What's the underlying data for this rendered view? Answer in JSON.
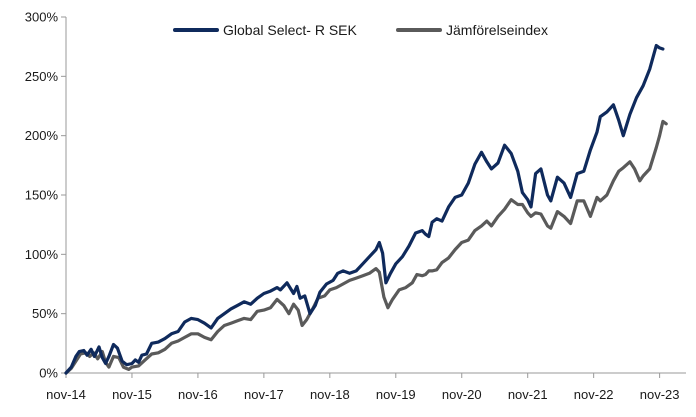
{
  "chart_data": {
    "type": "line",
    "title": "",
    "xlabel": "",
    "ylabel": "",
    "ylim": [
      0,
      300
    ],
    "yticks": [
      0,
      50,
      100,
      150,
      200,
      250,
      300
    ],
    "ytick_labels": [
      "0%",
      "50%",
      "100%",
      "150%",
      "200%",
      "250%",
      "300%"
    ],
    "xlim": [
      0,
      9.4
    ],
    "xtick_positions": [
      0,
      1,
      2,
      3,
      4,
      5,
      6,
      7,
      8,
      9
    ],
    "xtick_labels": [
      "nov-14",
      "nov-15",
      "nov-16",
      "nov-17",
      "nov-18",
      "nov-19",
      "nov-20",
      "nov-21",
      "nov-22",
      "nov-23"
    ],
    "grid": false,
    "legend_position": "top-center",
    "series": [
      {
        "name": "Global Select- R SEK",
        "color": "#0f2a5c",
        "points": [
          [
            0,
            0
          ],
          [
            0.08,
            5
          ],
          [
            0.15,
            14
          ],
          [
            0.2,
            18
          ],
          [
            0.27,
            19
          ],
          [
            0.32,
            15
          ],
          [
            0.38,
            20
          ],
          [
            0.43,
            14
          ],
          [
            0.5,
            22
          ],
          [
            0.55,
            13
          ],
          [
            0.6,
            8
          ],
          [
            0.65,
            14
          ],
          [
            0.72,
            24
          ],
          [
            0.78,
            21
          ],
          [
            0.85,
            10
          ],
          [
            0.92,
            7
          ],
          [
            1.0,
            8
          ],
          [
            1.05,
            11
          ],
          [
            1.1,
            9
          ],
          [
            1.15,
            15
          ],
          [
            1.22,
            16
          ],
          [
            1.3,
            25
          ],
          [
            1.4,
            26
          ],
          [
            1.5,
            29
          ],
          [
            1.6,
            33
          ],
          [
            1.7,
            35
          ],
          [
            1.8,
            43
          ],
          [
            1.9,
            46
          ],
          [
            2.0,
            45
          ],
          [
            2.1,
            42
          ],
          [
            2.2,
            38
          ],
          [
            2.3,
            46
          ],
          [
            2.4,
            50
          ],
          [
            2.5,
            54
          ],
          [
            2.6,
            57
          ],
          [
            2.7,
            60
          ],
          [
            2.8,
            58
          ],
          [
            2.9,
            63
          ],
          [
            3.0,
            67
          ],
          [
            3.1,
            69
          ],
          [
            3.2,
            72
          ],
          [
            3.25,
            70
          ],
          [
            3.35,
            76
          ],
          [
            3.45,
            67
          ],
          [
            3.5,
            73
          ],
          [
            3.55,
            63
          ],
          [
            3.62,
            65
          ],
          [
            3.7,
            50
          ],
          [
            3.78,
            57
          ],
          [
            3.85,
            68
          ],
          [
            3.95,
            75
          ],
          [
            4.05,
            78
          ],
          [
            4.12,
            84
          ],
          [
            4.2,
            86
          ],
          [
            4.3,
            84
          ],
          [
            4.4,
            86
          ],
          [
            4.5,
            92
          ],
          [
            4.6,
            98
          ],
          [
            4.7,
            104
          ],
          [
            4.75,
            110
          ],
          [
            4.8,
            101
          ],
          [
            4.85,
            76
          ],
          [
            4.92,
            84
          ],
          [
            5.0,
            92
          ],
          [
            5.1,
            98
          ],
          [
            5.2,
            107
          ],
          [
            5.3,
            118
          ],
          [
            5.4,
            120
          ],
          [
            5.45,
            117
          ],
          [
            5.5,
            115
          ],
          [
            5.55,
            127
          ],
          [
            5.62,
            130
          ],
          [
            5.7,
            128
          ],
          [
            5.8,
            140
          ],
          [
            5.9,
            148
          ],
          [
            6.0,
            150
          ],
          [
            6.1,
            160
          ],
          [
            6.2,
            176
          ],
          [
            6.3,
            186
          ],
          [
            6.38,
            178
          ],
          [
            6.45,
            172
          ],
          [
            6.55,
            177
          ],
          [
            6.65,
            192
          ],
          [
            6.75,
            185
          ],
          [
            6.85,
            170
          ],
          [
            6.92,
            152
          ],
          [
            7.0,
            146
          ],
          [
            7.05,
            140
          ],
          [
            7.12,
            168
          ],
          [
            7.2,
            172
          ],
          [
            7.3,
            150
          ],
          [
            7.35,
            145
          ],
          [
            7.45,
            165
          ],
          [
            7.55,
            160
          ],
          [
            7.65,
            148
          ],
          [
            7.75,
            168
          ],
          [
            7.85,
            170
          ],
          [
            7.95,
            188
          ],
          [
            8.05,
            203
          ],
          [
            8.1,
            216
          ],
          [
            8.2,
            220
          ],
          [
            8.3,
            226
          ],
          [
            8.38,
            213
          ],
          [
            8.45,
            200
          ],
          [
            8.55,
            218
          ],
          [
            8.65,
            232
          ],
          [
            8.75,
            242
          ],
          [
            8.85,
            256
          ],
          [
            8.95,
            276
          ],
          [
            9.0,
            274
          ],
          [
            9.05,
            273
          ]
        ]
      },
      {
        "name": "Jämförelseindex",
        "color": "#5a5a5a",
        "points": [
          [
            0,
            0
          ],
          [
            0.08,
            4
          ],
          [
            0.15,
            10
          ],
          [
            0.22,
            16
          ],
          [
            0.3,
            17
          ],
          [
            0.36,
            14
          ],
          [
            0.42,
            17
          ],
          [
            0.48,
            12
          ],
          [
            0.55,
            18
          ],
          [
            0.6,
            9
          ],
          [
            0.65,
            5
          ],
          [
            0.72,
            14
          ],
          [
            0.8,
            13
          ],
          [
            0.87,
            5
          ],
          [
            0.95,
            3
          ],
          [
            1.0,
            5
          ],
          [
            1.1,
            6
          ],
          [
            1.2,
            11
          ],
          [
            1.3,
            16
          ],
          [
            1.4,
            17
          ],
          [
            1.5,
            20
          ],
          [
            1.6,
            25
          ],
          [
            1.7,
            27
          ],
          [
            1.8,
            30
          ],
          [
            1.9,
            33
          ],
          [
            2.0,
            33
          ],
          [
            2.1,
            30
          ],
          [
            2.2,
            28
          ],
          [
            2.3,
            35
          ],
          [
            2.4,
            40
          ],
          [
            2.5,
            42
          ],
          [
            2.6,
            44
          ],
          [
            2.7,
            46
          ],
          [
            2.8,
            45
          ],
          [
            2.9,
            52
          ],
          [
            3.0,
            53
          ],
          [
            3.1,
            55
          ],
          [
            3.2,
            62
          ],
          [
            3.3,
            57
          ],
          [
            3.38,
            50
          ],
          [
            3.45,
            58
          ],
          [
            3.52,
            53
          ],
          [
            3.58,
            40
          ],
          [
            3.65,
            45
          ],
          [
            3.75,
            55
          ],
          [
            3.82,
            63
          ],
          [
            3.92,
            65
          ],
          [
            4.0,
            70
          ],
          [
            4.1,
            72
          ],
          [
            4.2,
            75
          ],
          [
            4.3,
            78
          ],
          [
            4.4,
            80
          ],
          [
            4.5,
            82
          ],
          [
            4.6,
            84
          ],
          [
            4.7,
            88
          ],
          [
            4.75,
            85
          ],
          [
            4.82,
            64
          ],
          [
            4.88,
            55
          ],
          [
            4.95,
            62
          ],
          [
            5.05,
            70
          ],
          [
            5.15,
            72
          ],
          [
            5.25,
            76
          ],
          [
            5.32,
            83
          ],
          [
            5.4,
            82
          ],
          [
            5.45,
            83
          ],
          [
            5.5,
            86
          ],
          [
            5.55,
            86
          ],
          [
            5.62,
            87
          ],
          [
            5.7,
            93
          ],
          [
            5.8,
            97
          ],
          [
            5.9,
            104
          ],
          [
            6.0,
            110
          ],
          [
            6.1,
            112
          ],
          [
            6.2,
            120
          ],
          [
            6.3,
            124
          ],
          [
            6.38,
            128
          ],
          [
            6.45,
            124
          ],
          [
            6.55,
            132
          ],
          [
            6.65,
            138
          ],
          [
            6.75,
            146
          ],
          [
            6.85,
            142
          ],
          [
            6.92,
            142
          ],
          [
            7.0,
            135
          ],
          [
            7.05,
            132
          ],
          [
            7.12,
            135
          ],
          [
            7.2,
            134
          ],
          [
            7.3,
            124
          ],
          [
            7.35,
            122
          ],
          [
            7.45,
            136
          ],
          [
            7.55,
            132
          ],
          [
            7.65,
            126
          ],
          [
            7.75,
            145
          ],
          [
            7.85,
            145
          ],
          [
            7.95,
            132
          ],
          [
            8.05,
            148
          ],
          [
            8.1,
            145
          ],
          [
            8.2,
            150
          ],
          [
            8.3,
            162
          ],
          [
            8.38,
            170
          ],
          [
            8.45,
            173
          ],
          [
            8.55,
            178
          ],
          [
            8.62,
            172
          ],
          [
            8.7,
            162
          ],
          [
            8.75,
            166
          ],
          [
            8.85,
            172
          ],
          [
            8.95,
            190
          ],
          [
            9.0,
            200
          ],
          [
            9.05,
            212
          ],
          [
            9.1,
            210
          ]
        ]
      }
    ]
  }
}
